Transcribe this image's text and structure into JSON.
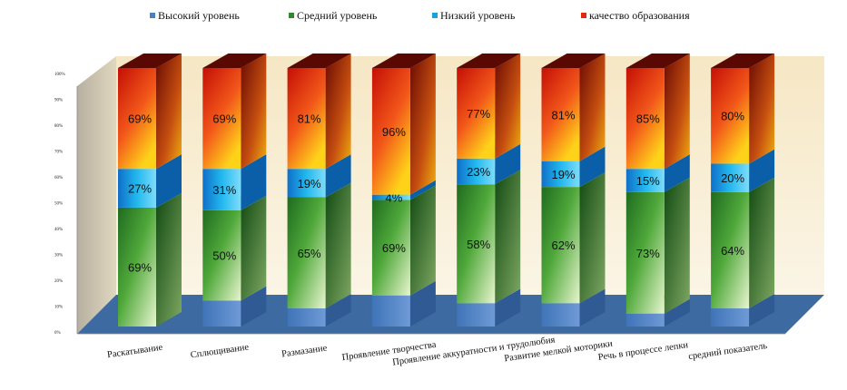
{
  "chart_data": {
    "type": "bar",
    "stacked": true,
    "three_d": true,
    "categories": [
      "Раскатывание",
      "Сплющивание",
      "Размазание",
      "Проявление творчества",
      "Проявление аккуратности и трудолюбия",
      "Развитие мелкой моторики",
      "Речь в процессе лепки",
      "средний показатель"
    ],
    "series": [
      {
        "name": "Высокий уровень",
        "color": "#4a7fc0",
        "values": [
          0,
          10,
          7,
          12,
          9,
          9,
          5,
          7
        ],
        "labels": [
          "",
          "",
          "",
          "",
          "",
          "",
          "",
          ""
        ]
      },
      {
        "name": "Средний уровень",
        "color": "#2f8a2f",
        "values": [
          46,
          35,
          43,
          37,
          46,
          45,
          47,
          45
        ],
        "labels": [
          "69%",
          "50%",
          "65%",
          "69%",
          "58%",
          "62%",
          "73%",
          "64%"
        ]
      },
      {
        "name": "Низкий уровень",
        "color": "#18a0e6",
        "values": [
          15,
          16,
          11,
          2,
          10,
          10,
          9,
          11
        ],
        "labels": [
          "27%",
          "31%",
          "19%",
          "4%",
          "23%",
          "19%",
          "15%",
          "20%"
        ]
      },
      {
        "name": "качество образования",
        "color": "#e02a10",
        "values": [
          39,
          39,
          39,
          49,
          35,
          36,
          39,
          37
        ],
        "labels": [
          "69%",
          "69%",
          "81%",
          "96%",
          "77%",
          "81%",
          "85%",
          "80%"
        ]
      }
    ],
    "y_ticks": [
      "0%",
      "10%",
      "20%",
      "30%",
      "40%",
      "50%",
      "60%",
      "70%",
      "80%",
      "90%",
      "100%"
    ],
    "ylim": [
      0,
      100
    ],
    "legend_position": "top",
    "grid": false
  }
}
